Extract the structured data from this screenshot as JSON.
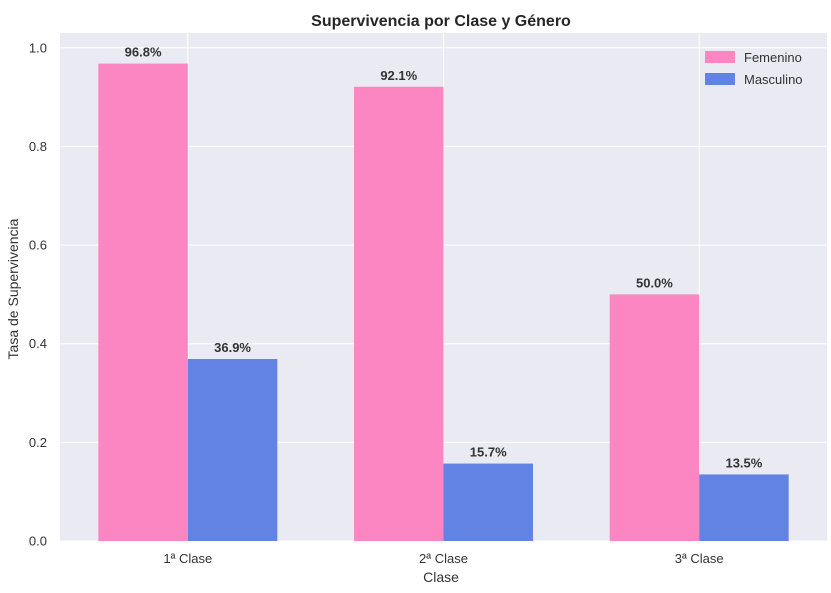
{
  "chart_data": {
    "type": "bar",
    "title": "Supervivencia por Clase y Género",
    "xlabel": "Clase",
    "ylabel": "Tasa de Supervivencia",
    "categories": [
      "1ª Clase",
      "2ª Clase",
      "3ª Clase"
    ],
    "series": [
      {
        "name": "Femenino",
        "color": "#FB86C1",
        "values": [
          0.968,
          0.921,
          0.5
        ],
        "labels": [
          "96.8%",
          "92.1%",
          "50.0%"
        ]
      },
      {
        "name": "Masculino",
        "color": "#6283E3",
        "values": [
          0.369,
          0.157,
          0.135
        ],
        "labels": [
          "36.9%",
          "15.7%",
          "13.5%"
        ]
      }
    ],
    "ylim": [
      0,
      1.03
    ],
    "yticks": [
      0.0,
      0.2,
      0.4,
      0.6,
      0.8,
      1.0
    ],
    "ytick_labels": [
      "0.0",
      "0.2",
      "0.4",
      "0.6",
      "0.8",
      "1.0"
    ],
    "grid": true,
    "legend": "top-right",
    "background": "#EAEAF2"
  }
}
